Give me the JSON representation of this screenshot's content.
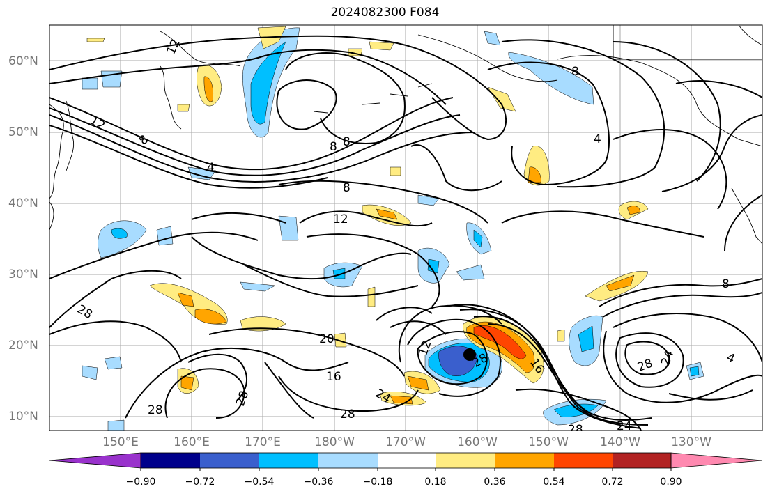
{
  "title": "2024082300 F084",
  "lat_labels": [
    "60°N",
    "50°N",
    "40°N",
    "30°N",
    "20°N",
    "10°N"
  ],
  "lon_labels": [
    "150°E",
    "160°E",
    "170°E",
    "180°W",
    "170°W",
    "160°W",
    "150°W",
    "140°W",
    "130°W"
  ],
  "colorbar": {
    "labels": [
      "−0.90",
      "−0.72",
      "−0.54",
      "−0.36",
      "−0.18",
      "0.18",
      "0.36",
      "0.54",
      "0.72",
      "0.90"
    ],
    "colors": [
      "#9932cc",
      "#00008b",
      "#3a5fcd",
      "#00bfff",
      "#a8dcff",
      "#ffffff",
      "#ffec82",
      "#ffa500",
      "#ff4500",
      "#b22222",
      "#ff89b0"
    ]
  },
  "contour_labels": [
    "12",
    "12",
    "8",
    "8",
    "8",
    "4",
    "4",
    "8",
    "12",
    "8",
    "28",
    "20",
    "16",
    "12",
    "28",
    "24",
    "28",
    "28",
    "28",
    "24",
    "28",
    "24",
    "8",
    "16",
    "28",
    "4"
  ],
  "marker": "storm-center"
}
